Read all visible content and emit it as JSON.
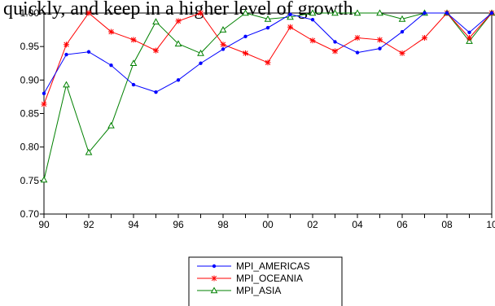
{
  "caption": "quickly, and keep in a higher level of growth.",
  "chart_data": {
    "type": "line",
    "x": [
      1990,
      1991,
      1992,
      1993,
      1994,
      1995,
      1996,
      1997,
      1998,
      1999,
      2000,
      2001,
      2002,
      2003,
      2004,
      2005,
      2006,
      2007,
      2008,
      2009,
      2010
    ],
    "xtick_labels": [
      "90",
      "92",
      "94",
      "96",
      "98",
      "00",
      "02",
      "04",
      "06",
      "08",
      "10"
    ],
    "xtick_values": [
      1990,
      1992,
      1994,
      1996,
      1998,
      2000,
      2002,
      2004,
      2006,
      2008,
      2010
    ],
    "ytick_labels": [
      "0.70",
      "0.75",
      "0.80",
      "0.85",
      "0.90",
      "0.95",
      "1.00"
    ],
    "ytick_values": [
      0.7,
      0.75,
      0.8,
      0.85,
      0.9,
      0.95,
      1.0
    ],
    "xlim": [
      1990,
      2010
    ],
    "ylim": [
      0.7,
      1.0
    ],
    "grid": false,
    "legend_position": "bottom-center",
    "series": [
      {
        "name": "MPI_AMERICAS",
        "color": "#0000ff",
        "marker": "dot",
        "values": [
          0.88,
          0.938,
          0.942,
          0.922,
          0.893,
          0.882,
          0.9,
          0.925,
          0.946,
          0.965,
          0.978,
          0.998,
          0.99,
          0.957,
          0.941,
          0.947,
          0.972,
          1.0,
          1.0,
          0.971,
          1.0
        ]
      },
      {
        "name": "MPI_OCEANIA",
        "color": "#ff0000",
        "marker": "star",
        "values": [
          0.864,
          0.953,
          1.0,
          0.972,
          0.96,
          0.944,
          0.988,
          1.0,
          0.953,
          0.94,
          0.926,
          0.979,
          0.959,
          0.943,
          0.963,
          0.96,
          0.94,
          0.963,
          1.0,
          0.963,
          1.0
        ]
      },
      {
        "name": "MPI_ASIA",
        "color": "#008000",
        "marker": "triangle",
        "values": [
          0.751,
          0.893,
          0.792,
          0.832,
          0.925,
          0.987,
          0.954,
          0.94,
          0.975,
          1.0,
          0.991,
          0.994,
          1.0,
          1.0,
          1.0,
          1.0,
          0.991,
          1.0,
          1.0,
          0.958,
          1.0
        ]
      }
    ]
  }
}
